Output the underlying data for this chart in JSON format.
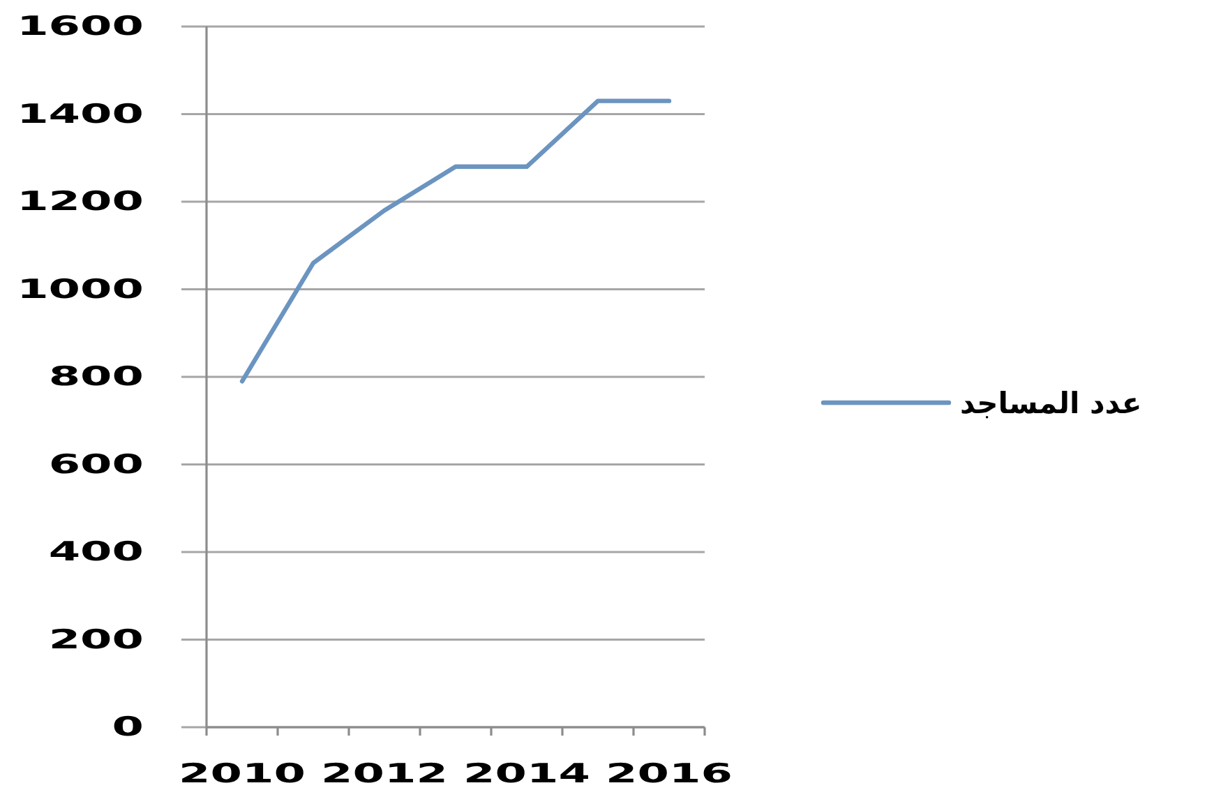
{
  "chart_data": {
    "type": "line",
    "categories": [
      "2010",
      null,
      "2012",
      null,
      "2014",
      null,
      "2016"
    ],
    "series": [
      {
        "name": "عدد المساجد",
        "color": "#6b94c0",
        "values": [
          790,
          1060,
          1180,
          1280,
          1280,
          1430,
          1430
        ]
      }
    ],
    "ylim": [
      0,
      1600
    ],
    "yticks": [
      0,
      200,
      400,
      600,
      800,
      1000,
      1200,
      1400,
      1600
    ],
    "grid": "y",
    "legend": "right",
    "line_style": "solid"
  }
}
